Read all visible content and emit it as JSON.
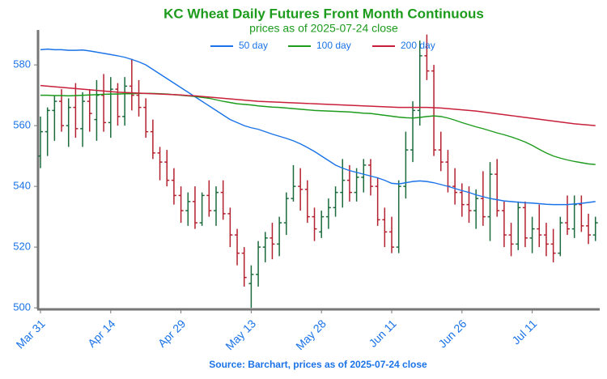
{
  "chart_data": {
    "type": "ohlc",
    "title": "KC Wheat Daily Futures Front Month Continuous",
    "subtitle": "prices as of 2025-07-24 close",
    "source": "Source: Barchart, prices as of 2025-07-24 close",
    "categories": [
      "Mar 31",
      null,
      null,
      null,
      null,
      null,
      null,
      null,
      null,
      null,
      "Apr 14",
      null,
      null,
      null,
      null,
      null,
      null,
      null,
      null,
      null,
      "Apr 29",
      null,
      null,
      null,
      null,
      null,
      null,
      null,
      null,
      null,
      "May 13",
      null,
      null,
      null,
      null,
      null,
      null,
      null,
      null,
      null,
      "May 28",
      null,
      null,
      null,
      null,
      null,
      null,
      null,
      null,
      null,
      "Jun 11",
      null,
      null,
      null,
      null,
      null,
      null,
      null,
      null,
      null,
      "Jun 26",
      null,
      null,
      null,
      null,
      null,
      null,
      null,
      null,
      null,
      "Jul 11",
      null,
      null,
      null,
      null,
      null,
      null,
      null,
      null,
      null
    ],
    "open": [
      550,
      558,
      565,
      568,
      560,
      566,
      559,
      568,
      562,
      570,
      561,
      572,
      563,
      573,
      570,
      566,
      558,
      551,
      548,
      542,
      537,
      532,
      535,
      528,
      537,
      532,
      538,
      531,
      524,
      518,
      508,
      511,
      520,
      523,
      521,
      528,
      536,
      540,
      539,
      530,
      525,
      530,
      533,
      538,
      542,
      538,
      543,
      547,
      540,
      529,
      525,
      520,
      540,
      552,
      565,
      583,
      578,
      552,
      548,
      540,
      538,
      534,
      532,
      536,
      530,
      544,
      532,
      524,
      521,
      533,
      523,
      526,
      524,
      521,
      518,
      528,
      526,
      534,
      527,
      524
    ],
    "high": [
      563,
      566,
      570,
      572,
      569,
      574,
      571,
      572,
      575,
      577,
      576,
      574,
      576,
      582,
      575,
      569,
      562,
      553,
      552,
      546,
      540,
      538,
      540,
      538,
      542,
      540,
      542,
      533,
      526,
      520,
      514,
      522,
      525,
      528,
      530,
      538,
      547,
      546,
      542,
      533,
      532,
      536,
      540,
      549,
      547,
      546,
      549,
      549,
      543,
      533,
      530,
      542,
      558,
      568,
      588,
      590,
      580,
      558,
      552,
      546,
      541,
      540,
      539,
      545,
      548,
      549,
      535,
      528,
      535,
      535,
      530,
      534,
      528,
      526,
      530,
      537,
      537,
      537,
      531,
      530
    ],
    "low": [
      546,
      550,
      555,
      558,
      553,
      556,
      553,
      558,
      555,
      558,
      556,
      560,
      560,
      565,
      563,
      556,
      549,
      542,
      540,
      534,
      528,
      527,
      526,
      527,
      530,
      527,
      529,
      520,
      514,
      507,
      500,
      507,
      515,
      516,
      517,
      524,
      535,
      532,
      528,
      522,
      523,
      526,
      530,
      533,
      535,
      535,
      538,
      537,
      527,
      520,
      518,
      518,
      536,
      548,
      560,
      575,
      550,
      545,
      538,
      534,
      530,
      528,
      526,
      527,
      522,
      530,
      520,
      517,
      519,
      520,
      518,
      520,
      517,
      515,
      517,
      524,
      523,
      525,
      521,
      522
    ],
    "close": [
      558,
      565,
      568,
      560,
      566,
      559,
      568,
      564,
      570,
      561,
      572,
      563,
      573,
      570,
      566,
      558,
      551,
      548,
      542,
      537,
      532,
      535,
      528,
      537,
      532,
      538,
      531,
      524,
      518,
      510,
      511,
      520,
      523,
      521,
      528,
      536,
      540,
      539,
      530,
      526,
      530,
      533,
      538,
      542,
      538,
      543,
      547,
      540,
      529,
      525,
      520,
      540,
      552,
      565,
      583,
      578,
      552,
      548,
      540,
      538,
      534,
      532,
      536,
      530,
      544,
      532,
      524,
      521,
      533,
      523,
      526,
      524,
      521,
      518,
      528,
      526,
      534,
      527,
      524,
      528
    ],
    "up_color": "#1b6b3c",
    "down_color": "#b3202f",
    "series": [
      {
        "name": "50 day",
        "color": "#1a73e8",
        "values": [
          585,
          585.2,
          585,
          585,
          584.8,
          584.8,
          584.9,
          584.6,
          584.2,
          583.8,
          583.4,
          583,
          582.5,
          581.8,
          581,
          580,
          578.5,
          577,
          575.5,
          574,
          572.5,
          571,
          569.5,
          568,
          566.5,
          565,
          563.5,
          562,
          561,
          560,
          559.3,
          558.8,
          558,
          557.2,
          556.5,
          555.8,
          555,
          554,
          552.8,
          551.5,
          550,
          548.5,
          547,
          546,
          545.2,
          544.6,
          544,
          543.4,
          542.8,
          542,
          541,
          540.8,
          541.2,
          541.6,
          541.8,
          541.6,
          541.2,
          540.6,
          540,
          539.3,
          538.6,
          538,
          537.2,
          536.6,
          536,
          535.6,
          535.2,
          535,
          534.8,
          534.6,
          534.5,
          534.3,
          534.1,
          534,
          534,
          534,
          534.2,
          534.4,
          534.7,
          535
        ]
      },
      {
        "name": "100 day",
        "color": "#1c9b1c",
        "values": [
          570,
          570,
          569.9,
          569.9,
          569.8,
          569.9,
          570,
          570.1,
          570.2,
          570.3,
          570.4,
          570.4,
          570.5,
          570.5,
          570.6,
          570.6,
          570.6,
          570.5,
          570.4,
          570.2,
          570,
          569.8,
          569.6,
          569.3,
          569,
          568.5,
          568,
          567.6,
          567.2,
          567,
          566.8,
          566.5,
          566.3,
          566.1,
          566,
          565.8,
          565.6,
          565.4,
          565.2,
          565,
          564.9,
          564.8,
          564.7,
          564.6,
          564.5,
          564.3,
          564.1,
          564,
          563.7,
          563.4,
          563.1,
          562.8,
          562.6,
          562.5,
          562.7,
          563,
          563.2,
          563,
          562.5,
          561.8,
          561,
          560.3,
          559.6,
          559,
          558.3,
          557.6,
          557,
          556.3,
          555.5,
          554.6,
          553.5,
          552.2,
          551,
          550,
          549.3,
          548.7,
          548.2,
          547.8,
          547.4,
          547.2
        ]
      },
      {
        "name": "200 day",
        "color": "#c8203a",
        "values": [
          573.2,
          573,
          572.8,
          572.6,
          572.4,
          572.2,
          572,
          571.8,
          571.6,
          571.4,
          571.2,
          571,
          570.9,
          570.8,
          570.7,
          570.6,
          570.5,
          570.4,
          570.3,
          570.2,
          570.1,
          569.9,
          569.8,
          569.6,
          569.4,
          569.2,
          569,
          568.8,
          568.6,
          568.4,
          568.2,
          568,
          567.9,
          567.8,
          567.7,
          567.6,
          567.5,
          567.4,
          567.3,
          567.2,
          567.1,
          567,
          566.9,
          566.8,
          566.7,
          566.6,
          566.5,
          566.4,
          566.3,
          566.2,
          566.1,
          566,
          566,
          566,
          566,
          566,
          565.9,
          565.8,
          565.6,
          565.4,
          565.2,
          565,
          564.8,
          564.5,
          564.2,
          563.9,
          563.6,
          563.3,
          563,
          562.7,
          562.4,
          562.1,
          561.8,
          561.5,
          561.2,
          560.9,
          560.6,
          560.4,
          560.2,
          560
        ]
      }
    ],
    "ylim": [
      499.5,
      591.5
    ],
    "yticks": [
      500,
      520,
      540,
      560,
      580
    ],
    "grid": false,
    "legend": "top"
  }
}
